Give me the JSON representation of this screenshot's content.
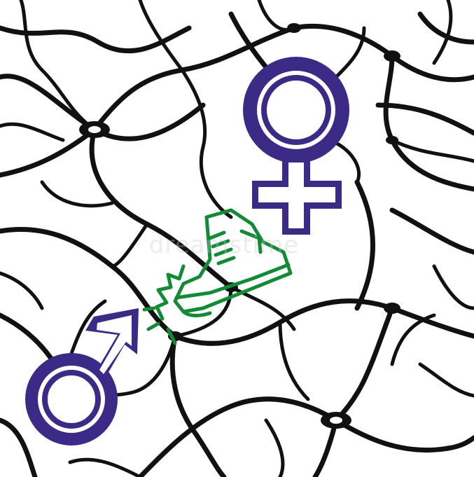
{
  "image": {
    "watermark_text": "dreamstime",
    "colors": {
      "background": "#ffffff",
      "network": "#111111",
      "venus_symbol": "#3b2a86",
      "mars_symbol": "#3b2a86",
      "shoe": "#138a36"
    },
    "icons": [
      "neuron-network-background",
      "venus-symbol-icon",
      "mars-symbol-icon",
      "kicking-shoe-icon"
    ]
  }
}
